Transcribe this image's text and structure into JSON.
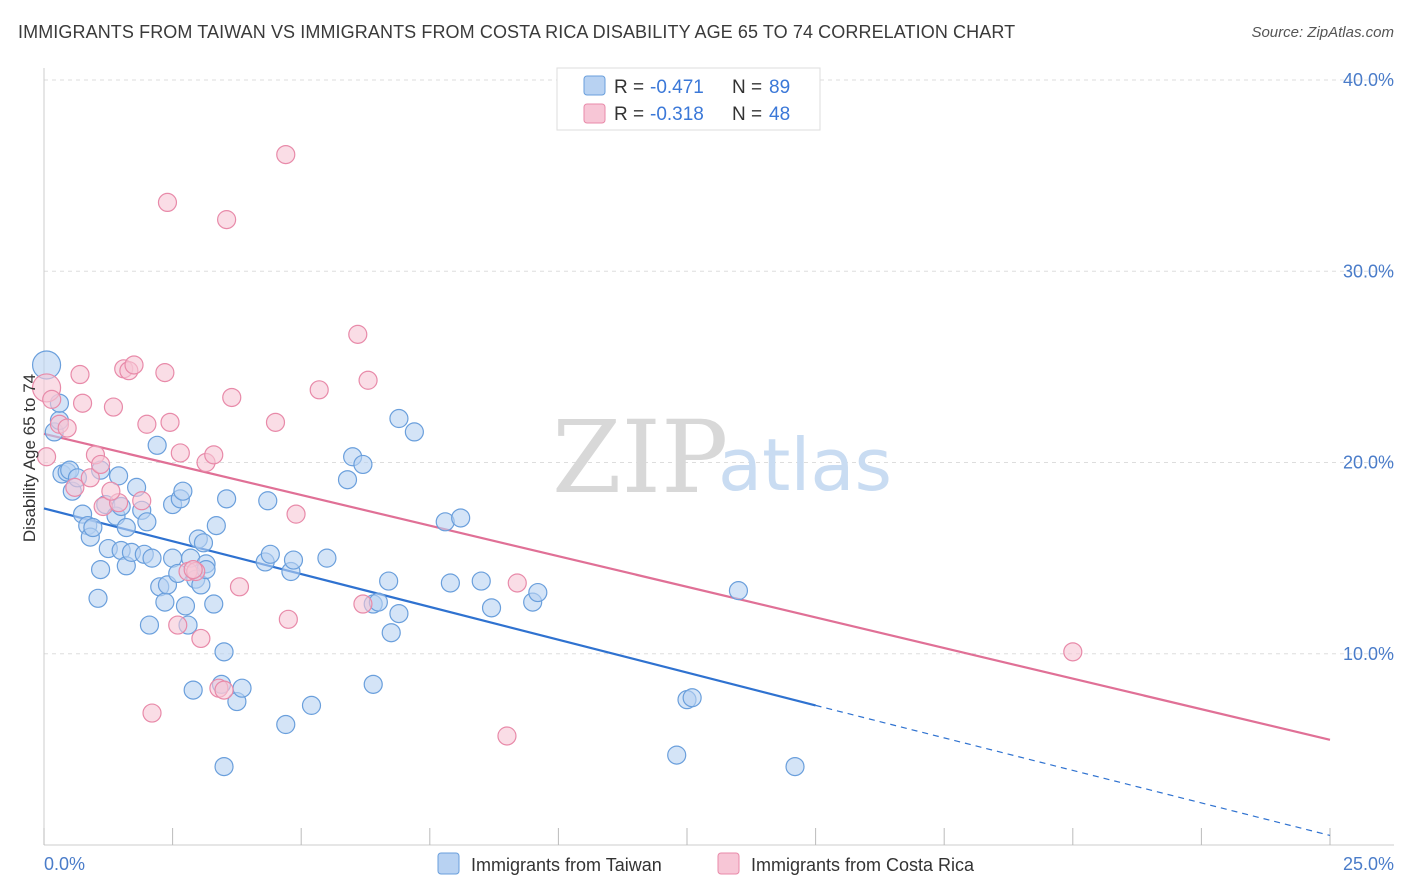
{
  "title": "IMMIGRANTS FROM TAIWAN VS IMMIGRANTS FROM COSTA RICA DISABILITY AGE 65 TO 74 CORRELATION CHART",
  "source": "Source: ZipAtlas.com",
  "watermark": {
    "zip": "ZIP",
    "atlas": "atlas"
  },
  "legend": {
    "taiwan": {
      "r_label": "R = ",
      "r_value": "-0.471",
      "n_label": "N = ",
      "n_value": "89"
    },
    "costa_rica": {
      "r_label": "R = ",
      "r_value": "-0.318",
      "n_label": "N = ",
      "n_value": "48"
    }
  },
  "colors": {
    "taiwan_fill": "#b8d2f2",
    "taiwan_stroke": "#6a9fdc",
    "taiwan_line": "#2f72d0",
    "costa_fill": "#f7c6d6",
    "costa_stroke": "#e88aa9",
    "costa_line": "#e07096",
    "grid": "#dddddd",
    "tick_text": "#4a7cc9"
  },
  "chart_data": {
    "type": "scatter",
    "title": "IMMIGRANTS FROM TAIWAN VS IMMIGRANTS FROM COSTA RICA DISABILITY AGE 65 TO 74 CORRELATION CHART",
    "xlabel": "",
    "ylabel": "Disability Age 65 to 74",
    "xlim": [
      0,
      25
    ],
    "ylim": [
      0,
      40
    ],
    "x_tick_labels": [
      "0.0%",
      "25.0%"
    ],
    "y_ticks": [
      10,
      20,
      30,
      40
    ],
    "y_tick_labels": [
      "10.0%",
      "20.0%",
      "30.0%",
      "40.0%"
    ],
    "grid": true,
    "legend_placement": "top-center",
    "series": [
      {
        "name": "Immigrants from Taiwan",
        "trend": {
          "x": [
            0,
            15
          ],
          "y": [
            17.6,
            7.3
          ],
          "dashed_to": [
            25,
            0.5
          ]
        },
        "points": [
          [
            0.05,
            25.1
          ],
          [
            0.2,
            21.6
          ],
          [
            0.3,
            22.2
          ],
          [
            0.3,
            23.1
          ],
          [
            0.35,
            19.4
          ],
          [
            0.45,
            19.5
          ],
          [
            0.5,
            19.6
          ],
          [
            0.55,
            18.5
          ],
          [
            0.65,
            19.2
          ],
          [
            0.75,
            17.3
          ],
          [
            0.85,
            16.7
          ],
          [
            0.9,
            16.1
          ],
          [
            0.95,
            16.6
          ],
          [
            1.05,
            12.9
          ],
          [
            1.1,
            14.4
          ],
          [
            1.2,
            17.8
          ],
          [
            1.25,
            15.5
          ],
          [
            1.4,
            17.2
          ],
          [
            1.45,
            19.3
          ],
          [
            1.5,
            17.7
          ],
          [
            1.5,
            15.4
          ],
          [
            1.6,
            16.6
          ],
          [
            1.6,
            14.6
          ],
          [
            1.7,
            15.3
          ],
          [
            1.8,
            18.7
          ],
          [
            1.9,
            17.5
          ],
          [
            1.95,
            15.2
          ],
          [
            2.0,
            16.9
          ],
          [
            2.05,
            11.5
          ],
          [
            2.1,
            15.0
          ],
          [
            2.2,
            20.9
          ],
          [
            2.25,
            13.5
          ],
          [
            2.35,
            12.7
          ],
          [
            2.4,
            13.6
          ],
          [
            2.5,
            17.8
          ],
          [
            2.5,
            15.0
          ],
          [
            2.6,
            14.2
          ],
          [
            2.65,
            18.1
          ],
          [
            2.7,
            18.5
          ],
          [
            2.75,
            12.5
          ],
          [
            2.8,
            11.5
          ],
          [
            2.85,
            15.0
          ],
          [
            2.9,
            8.1
          ],
          [
            2.95,
            13.9
          ],
          [
            3.0,
            16.0
          ],
          [
            3.05,
            13.6
          ],
          [
            3.1,
            15.8
          ],
          [
            3.15,
            14.7
          ],
          [
            3.15,
            14.4
          ],
          [
            3.3,
            12.6
          ],
          [
            3.35,
            16.7
          ],
          [
            3.45,
            8.4
          ],
          [
            3.5,
            10.1
          ],
          [
            3.55,
            18.1
          ],
          [
            3.75,
            7.5
          ],
          [
            3.85,
            8.2
          ],
          [
            4.3,
            14.8
          ],
          [
            4.35,
            18.0
          ],
          [
            4.4,
            15.2
          ],
          [
            4.7,
            6.3
          ],
          [
            4.8,
            14.3
          ],
          [
            4.85,
            14.9
          ],
          [
            5.2,
            7.3
          ],
          [
            5.5,
            15.0
          ],
          [
            5.9,
            19.1
          ],
          [
            6.0,
            20.3
          ],
          [
            6.2,
            19.9
          ],
          [
            6.4,
            12.6
          ],
          [
            6.4,
            8.4
          ],
          [
            6.5,
            12.7
          ],
          [
            6.7,
            13.8
          ],
          [
            6.75,
            11.1
          ],
          [
            6.9,
            22.3
          ],
          [
            6.9,
            12.1
          ],
          [
            7.2,
            21.6
          ],
          [
            7.8,
            16.9
          ],
          [
            7.9,
            13.7
          ],
          [
            8.1,
            17.1
          ],
          [
            8.5,
            13.8
          ],
          [
            8.7,
            12.4
          ],
          [
            9.5,
            12.7
          ],
          [
            9.6,
            13.2
          ],
          [
            12.3,
            4.7
          ],
          [
            12.5,
            7.6
          ],
          [
            12.6,
            7.7
          ],
          [
            13.5,
            13.3
          ],
          [
            14.6,
            4.1
          ],
          [
            1.1,
            19.6
          ],
          [
            3.5,
            4.1
          ]
        ]
      },
      {
        "name": "Immigrants from Costa Rica",
        "trend": {
          "x": [
            0,
            25
          ],
          "y": [
            21.5,
            5.5
          ]
        },
        "points": [
          [
            0.05,
            23.9
          ],
          [
            0.15,
            23.3
          ],
          [
            0.3,
            22.0
          ],
          [
            0.45,
            21.8
          ],
          [
            0.6,
            18.7
          ],
          [
            0.7,
            24.6
          ],
          [
            0.75,
            23.1
          ],
          [
            0.9,
            19.2
          ],
          [
            1.0,
            20.4
          ],
          [
            1.1,
            19.9
          ],
          [
            1.15,
            17.7
          ],
          [
            1.35,
            22.9
          ],
          [
            1.45,
            17.9
          ],
          [
            1.55,
            24.9
          ],
          [
            1.65,
            24.8
          ],
          [
            1.75,
            25.1
          ],
          [
            1.9,
            18.0
          ],
          [
            2.0,
            22.0
          ],
          [
            2.1,
            6.9
          ],
          [
            2.35,
            24.7
          ],
          [
            2.4,
            33.6
          ],
          [
            2.45,
            22.1
          ],
          [
            2.6,
            11.5
          ],
          [
            2.65,
            20.5
          ],
          [
            2.8,
            14.3
          ],
          [
            2.95,
            14.3
          ],
          [
            3.05,
            10.8
          ],
          [
            3.15,
            20.0
          ],
          [
            3.3,
            20.4
          ],
          [
            3.4,
            8.2
          ],
          [
            3.5,
            8.1
          ],
          [
            3.55,
            32.7
          ],
          [
            3.65,
            23.4
          ],
          [
            3.8,
            13.5
          ],
          [
            4.5,
            22.1
          ],
          [
            4.7,
            36.1
          ],
          [
            4.75,
            11.8
          ],
          [
            4.9,
            17.3
          ],
          [
            5.35,
            23.8
          ],
          [
            6.1,
            26.7
          ],
          [
            6.2,
            12.6
          ],
          [
            6.3,
            24.3
          ],
          [
            9.0,
            5.7
          ],
          [
            9.2,
            13.7
          ],
          [
            20.0,
            10.1
          ],
          [
            0.05,
            20.3
          ],
          [
            1.3,
            18.5
          ],
          [
            2.9,
            14.4
          ]
        ]
      }
    ]
  },
  "bottom_legend": {
    "taiwan": "Immigrants from Taiwan",
    "costa_rica": "Immigrants from Costa Rica"
  }
}
